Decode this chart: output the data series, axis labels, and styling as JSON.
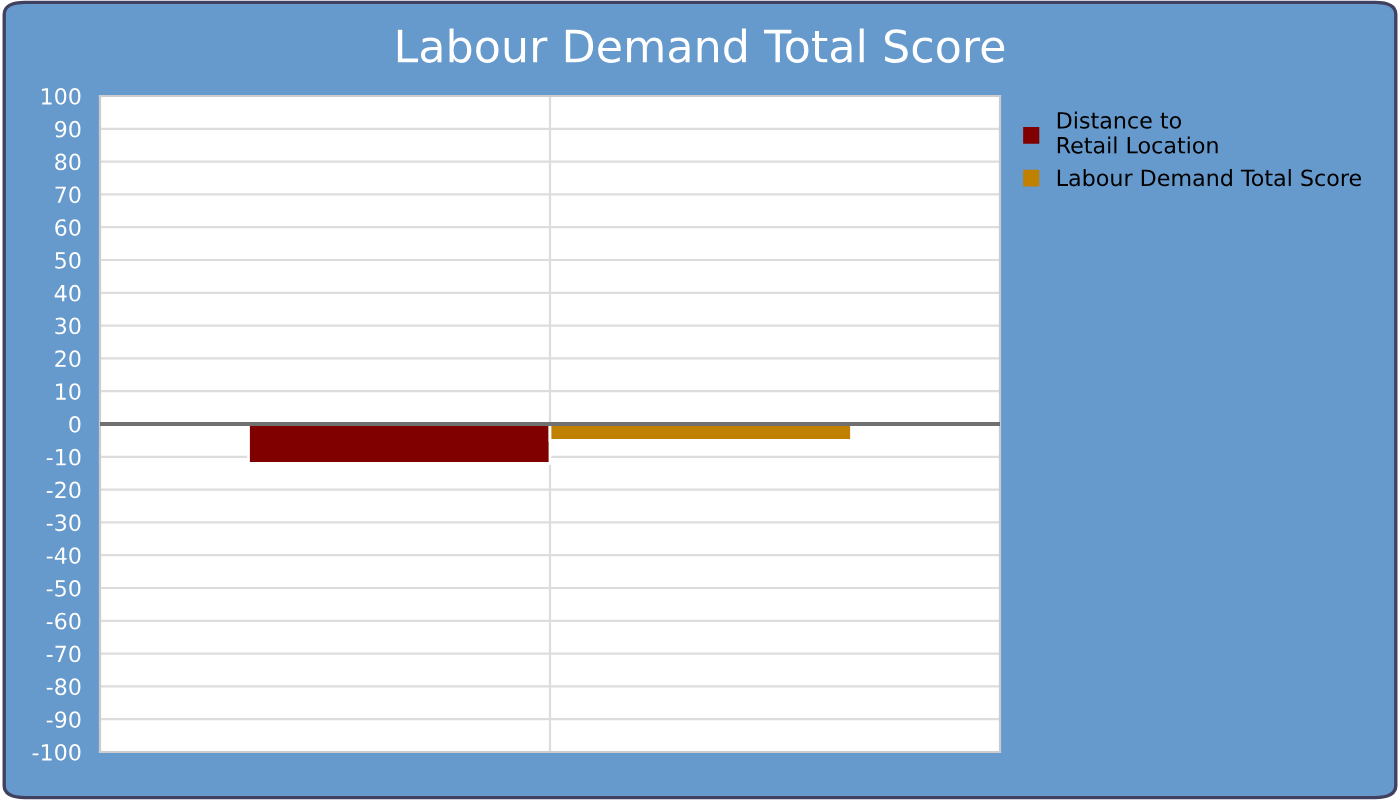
{
  "chart_data": {
    "type": "bar",
    "title": "Labour Demand Total Score",
    "categories": [
      null
    ],
    "series": [
      {
        "name": "Distance to\nRetail Location",
        "color": "#800000",
        "values": [
          -12
        ]
      },
      {
        "name": "Labour Demand Total Score",
        "color": "#c08000",
        "values": [
          -5
        ]
      }
    ],
    "ylim": [
      -100,
      100
    ],
    "yticks": [
      -100,
      -90,
      -80,
      -70,
      -60,
      -50,
      -40,
      -30,
      -20,
      -10,
      0,
      10,
      20,
      30,
      40,
      50,
      60,
      70,
      80,
      90,
      100
    ],
    "ref_lines": [
      {
        "axis": "y",
        "value": 0,
        "color": "#707070"
      }
    ],
    "grid": true,
    "legend": "right"
  }
}
